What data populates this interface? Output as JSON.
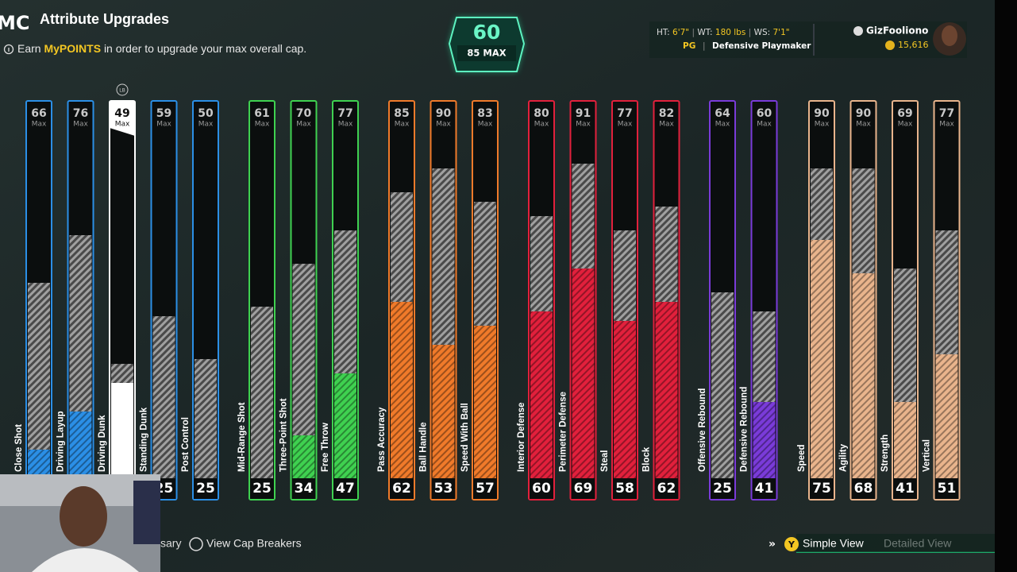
{
  "header": {
    "logo": "MC",
    "title": "Attribute Upgrades",
    "subtitle": {
      "prefix": "Earn",
      "highlight": "MyPOINTS",
      "suffix": "in order to upgrade your max overall cap."
    }
  },
  "overall": {
    "value": 60,
    "cap": "85 MAX"
  },
  "player": {
    "ht_label": "HT:",
    "ht": "6'7\"",
    "wt_label": "WT:",
    "wt": "180 lbs",
    "ws_label": "WS:",
    "ws": "7'1\"",
    "position": "PG",
    "archetype": "Defensive Playmaker",
    "name": "GizFooliono",
    "points": "15,616"
  },
  "max_label": "Max",
  "selected_hint": "LB",
  "groups": [
    {
      "color": "#2b8fe6",
      "attributes": [
        {
          "name": "Close Shot",
          "max": 66,
          "value": 31
        },
        {
          "name": "Driving Layup",
          "max": 76,
          "value": 39
        },
        {
          "name": "Driving Dunk",
          "max": 49,
          "value": 45,
          "selected": true
        },
        {
          "name": "Standing Dunk",
          "max": 59,
          "value": 25
        },
        {
          "name": "Post Control",
          "max": 50,
          "value": 25
        }
      ]
    },
    {
      "color": "#3fd150",
      "attributes": [
        {
          "name": "Mid-Range Shot",
          "max": 61,
          "value": 25
        },
        {
          "name": "Three-Point Shot",
          "max": 70,
          "value": 34
        },
        {
          "name": "Free Throw",
          "max": 77,
          "value": 47
        }
      ]
    },
    {
      "color": "#f07a2a",
      "attributes": [
        {
          "name": "Pass Accuracy",
          "max": 85,
          "value": 62
        },
        {
          "name": "Ball Handle",
          "max": 90,
          "value": 53
        },
        {
          "name": "Speed With Ball",
          "max": 83,
          "value": 57
        }
      ]
    },
    {
      "color": "#e2203c",
      "attributes": [
        {
          "name": "Interior Defense",
          "max": 80,
          "value": 60
        },
        {
          "name": "Perimeter Defense",
          "max": 91,
          "value": 69
        },
        {
          "name": "Steal",
          "max": 77,
          "value": 58
        },
        {
          "name": "Block",
          "max": 82,
          "value": 62
        }
      ]
    },
    {
      "color": "#7a3bd9",
      "attributes": [
        {
          "name": "Offensive Rebound",
          "max": 64,
          "value": 25
        },
        {
          "name": "Defensive Rebound",
          "max": 60,
          "value": 41
        }
      ]
    },
    {
      "color": "#e9b48c",
      "attributes": [
        {
          "name": "Speed",
          "max": 90,
          "value": 75
        },
        {
          "name": "Agility",
          "max": 90,
          "value": 68
        },
        {
          "name": "Strength",
          "max": 69,
          "value": 41
        },
        {
          "name": "Vertical",
          "max": 77,
          "value": 51
        }
      ]
    }
  ],
  "footer": {
    "left_partial": "sary",
    "cap_breakers": "View Cap Breakers",
    "y_button": "Y",
    "simple_view": "Simple View",
    "detailed_view": "Detailed View"
  }
}
